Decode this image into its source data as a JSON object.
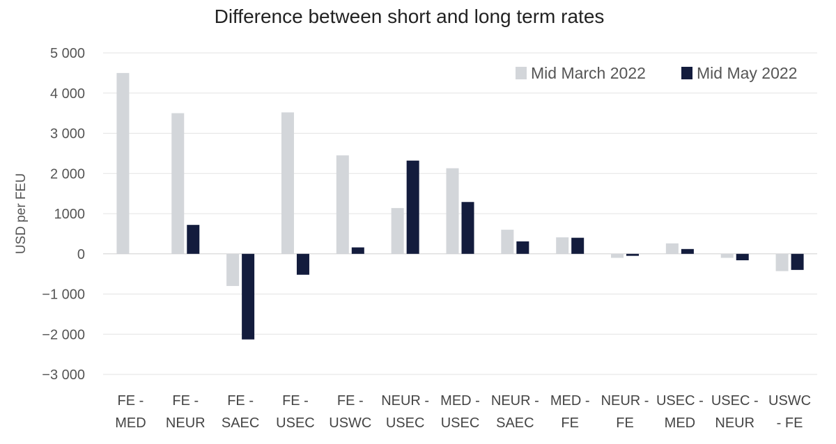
{
  "chart_data": {
    "type": "bar",
    "title": "Difference between short and long term rates",
    "xlabel": "",
    "ylabel": "USD per FEU",
    "ylim": [
      -3000,
      5000
    ],
    "yticks": [
      5000,
      4000,
      3000,
      2000,
      1000,
      0,
      -1000,
      -2000,
      -3000
    ],
    "ytick_labels": [
      "5 000",
      "4 000",
      "3 000",
      "2 000",
      "1000",
      "0",
      "−1 000",
      "−2 000",
      "−3 000"
    ],
    "grid": true,
    "legend_position": "top-right",
    "categories": [
      [
        "FE -",
        "MED"
      ],
      [
        "FE -",
        "NEUR"
      ],
      [
        "FE -",
        "SAEC"
      ],
      [
        "FE -",
        "USEC"
      ],
      [
        "FE -",
        "USWC"
      ],
      [
        "NEUR -",
        "USEC"
      ],
      [
        "MED -",
        "USEC"
      ],
      [
        "NEUR -",
        "SAEC"
      ],
      [
        "MED -",
        "FE"
      ],
      [
        "NEUR -",
        "FE"
      ],
      [
        "USEC -",
        "MED"
      ],
      [
        "USEC -",
        "NEUR"
      ],
      [
        "USWC",
        "- FE"
      ]
    ],
    "series": [
      {
        "name": "Mid March 2022",
        "color": "#d3d6da",
        "values": [
          4500,
          3500,
          -800,
          3520,
          2450,
          1140,
          2130,
          600,
          410,
          -100,
          260,
          -100,
          -430
        ]
      },
      {
        "name": "Mid May 2022",
        "color": "#131c3d",
        "values": [
          0,
          720,
          -2130,
          -520,
          160,
          2320,
          1290,
          310,
          400,
          -50,
          120,
          -160,
          -400
        ]
      }
    ]
  }
}
